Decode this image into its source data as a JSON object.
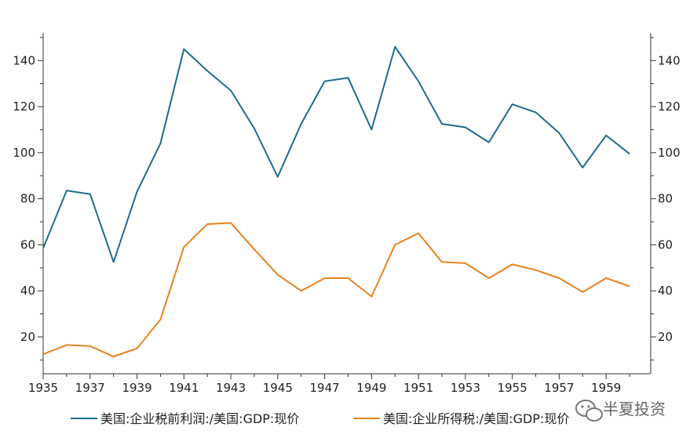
{
  "chart_data": {
    "type": "line",
    "title": "",
    "xlabel": "",
    "ylabel": "",
    "x": [
      1935,
      1936,
      1937,
      1938,
      1939,
      1940,
      1941,
      1942,
      1943,
      1944,
      1945,
      1946,
      1947,
      1948,
      1949,
      1950,
      1951,
      1952,
      1953,
      1954,
      1955,
      1956,
      1957,
      1958,
      1959,
      1960
    ],
    "xlim": [
      1935,
      1960.9
    ],
    "xticks": [
      1935,
      1937,
      1939,
      1941,
      1943,
      1945,
      1947,
      1949,
      1951,
      1953,
      1955,
      1957,
      1959
    ],
    "ylim_left": [
      4,
      152
    ],
    "ylim_right": [
      4,
      152
    ],
    "yticks": [
      20,
      40,
      60,
      80,
      100,
      120,
      140
    ],
    "grid": false,
    "legend_position": "bottom",
    "series": [
      {
        "name": "美国:企业税前利润:/美国:GDP:现价",
        "color": "#1f6b8c",
        "values": [
          58.5,
          83.5,
          82,
          52.5,
          83,
          104,
          145,
          135.5,
          127,
          110.5,
          89.5,
          112.5,
          131,
          132.5,
          110,
          146,
          131,
          112.5,
          111,
          104.5,
          121,
          117.5,
          108.5,
          93.5,
          107.5,
          99.5
        ]
      },
      {
        "name": "美国:企业所得税:/美国:GDP:现价",
        "color": "#e8821e",
        "values": [
          12.5,
          16.5,
          16,
          11.5,
          15,
          27.5,
          59,
          69,
          69.5,
          58,
          47,
          40,
          45.5,
          45.5,
          37.5,
          60,
          65,
          52.5,
          52,
          45.5,
          51.5,
          49,
          45.5,
          39.5,
          45.5,
          42
        ]
      }
    ]
  },
  "watermark": {
    "icon": "wechat-icon",
    "text": "半夏投资"
  }
}
